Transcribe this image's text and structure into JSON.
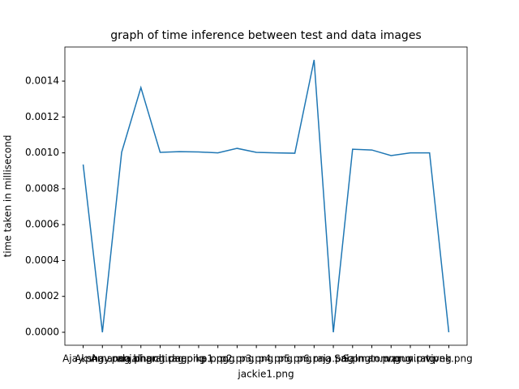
{
  "chart_data": {
    "type": "line",
    "title": "graph of time inference between test and data images",
    "xlabel": "jackie1.png",
    "ylabel": "time taken in millisecond",
    "categories": [
      "Ajay.png",
      "Akshay.png",
      "Amanda.png",
      "anjali.png",
      "bharat.png",
      "chirag.png",
      "deepika.png",
      "p1.png",
      "p2.png",
      "p3.png",
      "p4.png",
      "p5.png",
      "p6.png",
      "raja.png",
      "Sai.png",
      "Salman.png",
      "tom.png",
      "varun.png",
      "virat.png",
      "vivek.png"
    ],
    "series": [
      {
        "name": "time",
        "color": "#1f77b4",
        "values": [
          0.000935,
          0,
          0.001003,
          0.001364,
          0.001003,
          0.001007,
          0.001005,
          0.001,
          0.001025,
          0.001003,
          0.001,
          0.000998,
          0.001518,
          0,
          0.00102,
          0.001016,
          0.000985,
          0.001,
          0.001,
          0
        ]
      }
    ],
    "ylim": [
      -7.23e-05,
      0.00159
    ],
    "yticks": [
      {
        "value": 0,
        "label": "0.0000"
      },
      {
        "value": 0.0002,
        "label": "0.0002"
      },
      {
        "value": 0.0004,
        "label": "0.0004"
      },
      {
        "value": 0.0006,
        "label": "0.0006"
      },
      {
        "value": 0.0008,
        "label": "0.0008"
      },
      {
        "value": 0.001,
        "label": "0.0010"
      },
      {
        "value": 0.0012,
        "label": "0.0012"
      },
      {
        "value": 0.0014,
        "label": "0.0014"
      }
    ]
  }
}
